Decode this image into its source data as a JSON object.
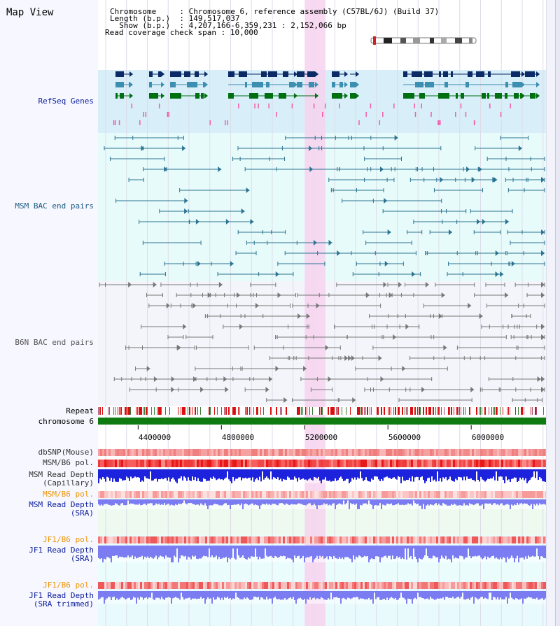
{
  "page_title": "Map View",
  "header": {
    "lines": [
      {
        "label": "Chromosome",
        "pad": "     ",
        "value": "Chromosome 6, reference assembly (C57BL/6J) (Build 37)"
      },
      {
        "label": "Length (b.p.)",
        "pad": "  ",
        "value": "149,517,037"
      },
      {
        "label": "  Show (b.p.)",
        "pad": "  ",
        "value": "4,207,166-6,359,231 : 2,152,066 bp"
      },
      {
        "label": "Read coverage check span",
        "pad": " ",
        "value": "10,000"
      }
    ]
  },
  "colors": {
    "refseq_bg": "#d8eef8",
    "bac_bg": "#e8fbfb",
    "b6n_bg": "#f4f5fb",
    "highlight": "#f6d2ef",
    "navy": "#0b2a66",
    "teal": "#3c8fb0",
    "green": "#006f12",
    "pink": "#f25caa",
    "msm_line": "#2b7391",
    "b6n_line": "#777777",
    "blue_label": "#0a1d9a",
    "orange_label": "#ee9400",
    "chrom_green": "#0f7a10",
    "depth_blue": "#1d22dd",
    "depth_violet": "#7c7cf2"
  },
  "tracks": [
    {
      "name": "refseq_genes",
      "label": "RefSeq Genes",
      "color": "#0a1d9a"
    },
    {
      "name": "msm_bac",
      "label": "MSM BAC end pairs",
      "color": "#1c5b80"
    },
    {
      "name": "b6n_bac",
      "label": "B6N BAC end pairs",
      "color": "#555555"
    },
    {
      "name": "repeat",
      "label": "Repeat",
      "color": "#000000"
    },
    {
      "name": "chromosome",
      "label": "chromosome 6",
      "color": "#000000"
    },
    {
      "name": "dbsnp",
      "label": "dbSNP(Mouse)",
      "color": "#333333"
    },
    {
      "name": "msm_b6_pol",
      "label": "MSM/B6 pol.",
      "color": "#333333"
    },
    {
      "name": "msm_depth_cap",
      "label": "MSM Read Depth",
      "label2": "(Capillary)",
      "color": "#333333"
    },
    {
      "name": "msm_b6_pol_sra",
      "label": "MSM/B6 pol.",
      "color": "#ee9400"
    },
    {
      "name": "msm_depth_sra",
      "label": "MSM Read Depth",
      "label2": "(SRA)",
      "color": "#0a1d9a"
    },
    {
      "name": "jf1_b6_pol",
      "label": "JF1/B6 pol.",
      "color": "#ee9400"
    },
    {
      "name": "jf1_depth_sra",
      "label": "JF1 Read Depth",
      "label2": "(SRA)",
      "color": "#0a1d9a"
    },
    {
      "name": "jf1_b6_pol2",
      "label": "JF1/B6 pol.",
      "color": "#ee9400"
    },
    {
      "name": "jf1_depth_trim",
      "label": "JF1 Read Depth",
      "label2": "(SRA trimmed)",
      "color": "#0a1d9a"
    }
  ],
  "axis": {
    "ticks": [
      {
        "value": 4400000,
        "label": "4400000"
      },
      {
        "value": 4800000,
        "label": "4800000"
      },
      {
        "value": 5200000,
        "label": "5200000"
      },
      {
        "value": 5600000,
        "label": "5600000"
      },
      {
        "value": 6000000,
        "label": "6000000"
      }
    ]
  },
  "region": {
    "start": 4207166,
    "end": 6359231
  },
  "highlight_region": {
    "start": 5200000,
    "end": 5300000
  }
}
